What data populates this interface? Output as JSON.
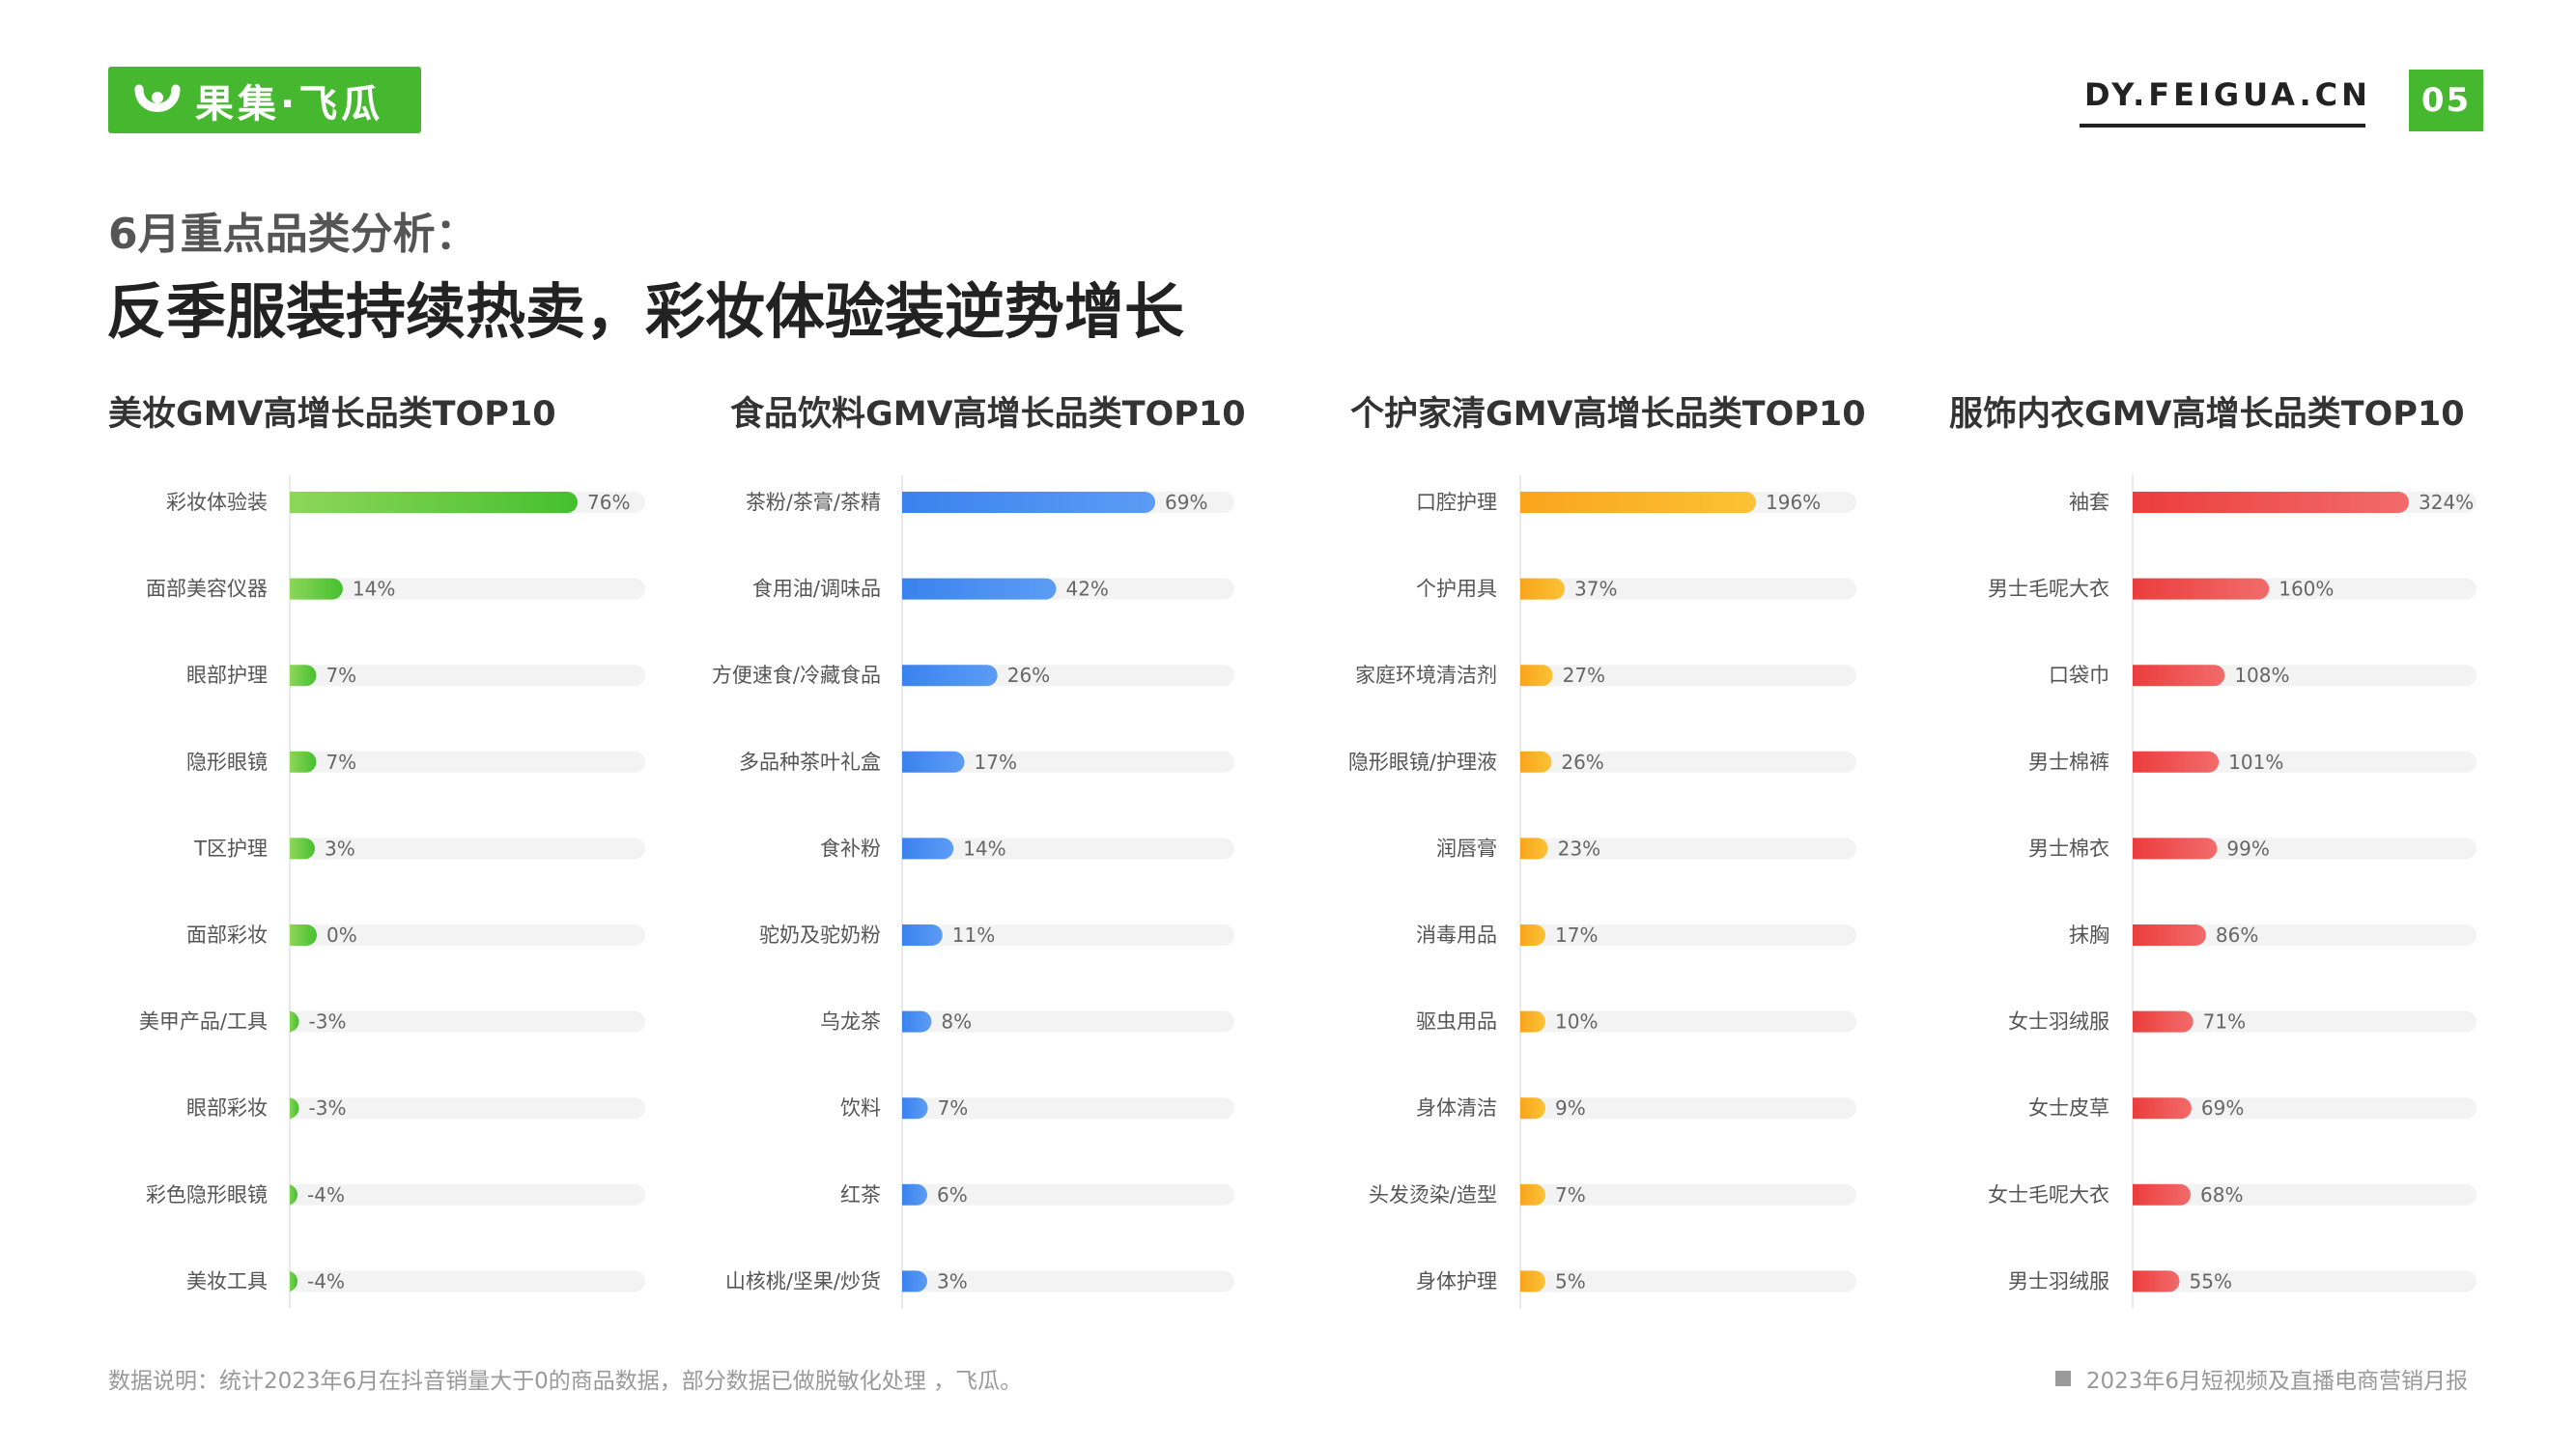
{
  "header": {
    "logo_text": "果集·飞瓜",
    "site_url": "DY.FEIGUA.CN",
    "page_number": "05"
  },
  "subtitle": "6月重点品类分析：",
  "title": "反季服装持续热卖，彩妆体验装逆势增长",
  "footer": {
    "note": "数据说明：统计2023年6月在抖音销量大于0的商品数据，部分数据已做脱敏化处理 ，飞瓜。",
    "report": "2023年6月短视频及直播电商营销月报"
  },
  "colors": {
    "brand_green": "#45b82f",
    "track": "#f3f3f3"
  },
  "chart_data": [
    {
      "type": "bar",
      "orientation": "horizontal",
      "title": "美妆GMV高增长品类TOP10",
      "categories": [
        "彩妆体验装",
        "面部美容仪器",
        "眼部护理",
        "隐形眼镜",
        "T区护理",
        "面部彩妆",
        "美甲产品/工具",
        "眼部彩妆",
        "彩色隐形眼镜",
        "美妆工具"
      ],
      "values": [
        76,
        14,
        7,
        7,
        3,
        0,
        -3,
        -3,
        -4,
        -4
      ],
      "labels": [
        "76%",
        "14%",
        "7%",
        "7%",
        "3%",
        "0%",
        "-3%",
        "-3%",
        "-4%",
        "-4%"
      ],
      "unit": "%",
      "color_start": "#8ed659",
      "color_end": "#45c02f"
    },
    {
      "type": "bar",
      "orientation": "horizontal",
      "title": "食品饮料GMV高增长品类TOP10",
      "categories": [
        "茶粉/茶膏/茶精",
        "食用油/调味品",
        "方便速食/冷藏食品",
        "多品种茶叶礼盒",
        "食补粉",
        "驼奶及驼奶粉",
        "乌龙茶",
        "饮料",
        "红茶",
        "山核桃/坚果/炒货"
      ],
      "values": [
        69,
        42,
        26,
        17,
        14,
        11,
        8,
        7,
        6,
        3
      ],
      "labels": [
        "69%",
        "42%",
        "26%",
        "17%",
        "14%",
        "11%",
        "8%",
        "7%",
        "6%",
        "3%"
      ],
      "unit": "%",
      "color_start": "#3a82ee",
      "color_end": "#5c9cf5"
    },
    {
      "type": "bar",
      "orientation": "horizontal",
      "title": "个护家清GMV高增长品类TOP10",
      "categories": [
        "口腔护理",
        "个护用具",
        "家庭环境清洁剂",
        "隐形眼镜/护理液",
        "润唇膏",
        "消毒用品",
        "驱虫用品",
        "身体清洁",
        "头发烫染/造型",
        "身体护理"
      ],
      "values": [
        196,
        37,
        27,
        26,
        23,
        17,
        10,
        9,
        7,
        5
      ],
      "labels": [
        "196%",
        "37%",
        "27%",
        "26%",
        "23%",
        "17%",
        "10%",
        "9%",
        "7%",
        "5%"
      ],
      "unit": "%",
      "color_start": "#f9a51c",
      "color_end": "#fcc235"
    },
    {
      "type": "bar",
      "orientation": "horizontal",
      "title": "服饰内衣GMV高增长品类TOP10",
      "categories": [
        "袖套",
        "男士毛呢大衣",
        "口袋巾",
        "男士棉裤",
        "男士棉衣",
        "抹胸",
        "女士羽绒服",
        "女士皮草",
        "女士毛呢大衣",
        "男士羽绒服"
      ],
      "values": [
        324,
        160,
        108,
        101,
        99,
        86,
        71,
        69,
        68,
        55
      ],
      "labels": [
        "324%",
        "160%",
        "108%",
        "101%",
        "99%",
        "86%",
        "71%",
        "69%",
        "68%",
        "55%"
      ],
      "unit": "%",
      "color_start": "#ec3d3d",
      "color_end": "#f26b6b"
    }
  ]
}
